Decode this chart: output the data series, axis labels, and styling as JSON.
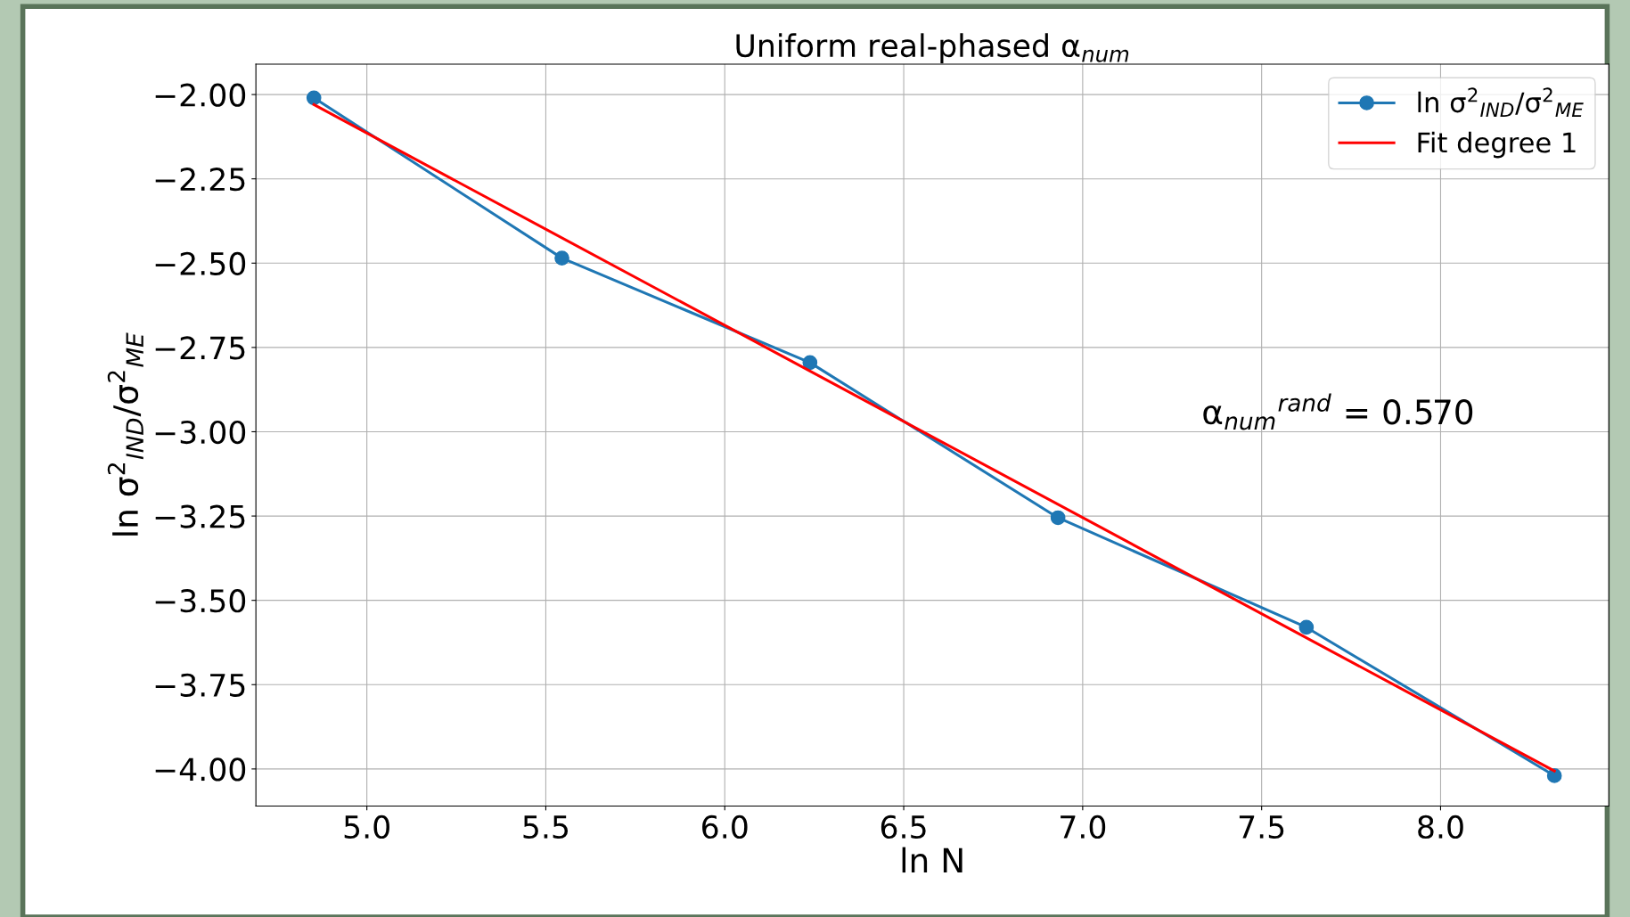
{
  "chart_data": {
    "type": "line",
    "title": "Uniform real-phased α$_{num}$",
    "xlabel": "ln N",
    "ylabel": "ln σ$^{2}$$_{IND}$/σ$^{2}$$_{ME}$",
    "series": [
      {
        "name": "ln σ$^{2}$$_{IND}$/σ$^{2}$$_{ME}$",
        "color": "#1f77b4",
        "marker": "circle",
        "x": [
          4.852,
          5.545,
          6.238,
          6.931,
          7.625,
          8.318
        ],
        "values": [
          -2.01,
          -2.485,
          -2.795,
          -3.255,
          -3.58,
          -4.02
        ]
      },
      {
        "name": "Fit degree 1",
        "color": "#ff0000",
        "x": [
          4.852,
          8.318
        ],
        "values": [
          -2.03,
          -4.006
        ]
      }
    ],
    "xlim": [
      4.69,
      8.47
    ],
    "ylim": [
      -4.11,
      -1.91
    ],
    "xticks": [
      {
        "value": 5,
        "label": "5.0"
      },
      5.5,
      {
        "value": 6,
        "label": "6.0"
      },
      6.5,
      {
        "value": 7,
        "label": "7.0"
      },
      7.5,
      {
        "value": 8,
        "label": "8.0"
      }
    ],
    "yticks": [
      {
        "value": -2,
        "label": "−2.00"
      },
      {
        "value": -2.25,
        "label": "−2.25"
      },
      {
        "value": -2.5,
        "label": "−2.50"
      },
      {
        "value": -2.75,
        "label": "−2.75"
      },
      {
        "value": -3,
        "label": "−3.00"
      },
      {
        "value": -3.25,
        "label": "−3.25"
      },
      {
        "value": -3.5,
        "label": "−3.50"
      },
      {
        "value": -3.75,
        "label": "−3.75"
      },
      {
        "value": -4,
        "label": "−4.00"
      }
    ],
    "grid": true,
    "legend": "top right",
    "annotations": [
      "α$_{num}$$^{rand}$ = 0.570"
    ]
  }
}
